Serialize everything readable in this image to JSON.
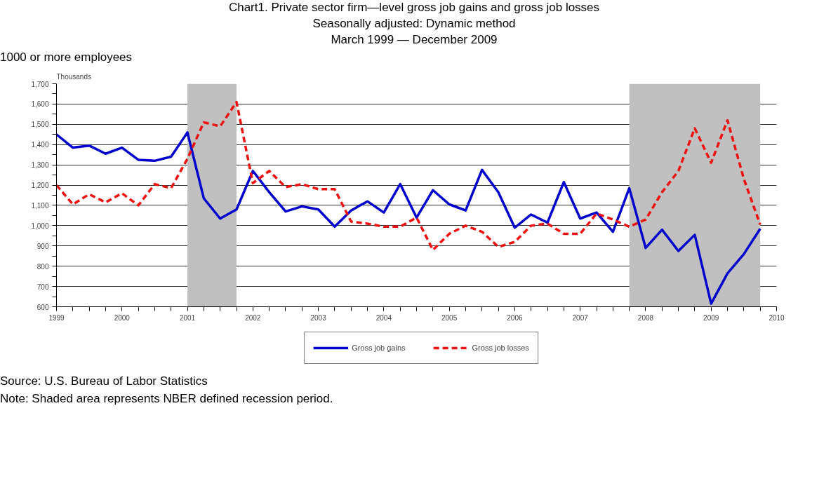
{
  "chart_data": {
    "type": "line",
    "title": "Chart1. Private sector firm—level gross job gains and gross job losses",
    "subtitle": "Seasonally adjusted: Dynamic method\nMarch 1999 — December 2009",
    "ylabel": "Thousands",
    "annotations": [
      "1000 or more employees",
      "Source: U.S. Bureau of Labor Statistics",
      "Note: Shaded area represents NBER defined recession period."
    ],
    "x": [
      1999,
      1999.25,
      1999.5,
      1999.75,
      2000,
      2000.25,
      2000.5,
      2000.75,
      2001,
      2001.25,
      2001.5,
      2001.75,
      2002,
      2002.25,
      2002.5,
      2002.75,
      2003,
      2003.25,
      2003.5,
      2003.75,
      2004,
      2004.25,
      2004.5,
      2004.75,
      2005,
      2005.25,
      2005.5,
      2005.75,
      2006,
      2006.25,
      2006.5,
      2006.75,
      2007,
      2007.25,
      2007.5,
      2007.75,
      2008,
      2008.25,
      2008.5,
      2008.75,
      2009,
      2009.25,
      2009.5,
      2009.75
    ],
    "series": [
      {
        "name": "Gross job gains",
        "color": "#0000cc",
        "line_style": "solid",
        "values": [
          1450,
          1385,
          1395,
          1355,
          1385,
          1325,
          1320,
          1340,
          1460,
          1135,
          1035,
          1080,
          1270,
          1165,
          1070,
          1095,
          1080,
          995,
          1075,
          1120,
          1065,
          1205,
          1040,
          1175,
          1105,
          1075,
          1275,
          1165,
          990,
          1055,
          1015,
          1215,
          1035,
          1065,
          970,
          1185,
          890,
          980,
          875,
          955,
          615,
          765,
          860,
          985
        ]
      },
      {
        "name": "Gross job losses",
        "color": "#ee1111",
        "line_style": "dashed",
        "values": [
          1200,
          1105,
          1155,
          1115,
          1160,
          1100,
          1205,
          1185,
          1330,
          1510,
          1490,
          1610,
          1210,
          1270,
          1190,
          1205,
          1180,
          1180,
          1020,
          1010,
          995,
          995,
          1040,
          880,
          960,
          1000,
          970,
          895,
          920,
          1000,
          1010,
          960,
          960,
          1060,
          1030,
          995,
          1030,
          1165,
          1270,
          1480,
          1310,
          1520,
          1230,
          1005
        ]
      }
    ],
    "bands": [
      {
        "axis": "x",
        "from": 2001,
        "to": 2001.75,
        "color": "#c0c0c0"
      },
      {
        "axis": "x",
        "from": 2007.75,
        "to": 2009.75,
        "color": "#c0c0c0"
      }
    ],
    "xlim": [
      1999,
      2010
    ],
    "xticks": [
      1999,
      {
        "value": 1999.25,
        "label": null
      },
      {
        "value": 1999.5,
        "label": null
      },
      {
        "value": 1999.75,
        "label": null
      },
      2000,
      {
        "value": 2000.25,
        "label": null
      },
      {
        "value": 2000.5,
        "label": null
      },
      {
        "value": 2000.75,
        "label": null
      },
      2001,
      {
        "value": 2001.25,
        "label": null
      },
      {
        "value": 2001.5,
        "label": null
      },
      {
        "value": 2001.75,
        "label": null
      },
      2002,
      {
        "value": 2002.25,
        "label": null
      },
      {
        "value": 2002.5,
        "label": null
      },
      {
        "value": 2002.75,
        "label": null
      },
      2003,
      {
        "value": 2003.25,
        "label": null
      },
      {
        "value": 2003.5,
        "label": null
      },
      {
        "value": 2003.75,
        "label": null
      },
      2004,
      {
        "value": 2004.25,
        "label": null
      },
      {
        "value": 2004.5,
        "label": null
      },
      {
        "value": 2004.75,
        "label": null
      },
      2005,
      {
        "value": 2005.25,
        "label": null
      },
      {
        "value": 2005.5,
        "label": null
      },
      {
        "value": 2005.75,
        "label": null
      },
      2006,
      {
        "value": 2006.25,
        "label": null
      },
      {
        "value": 2006.5,
        "label": null
      },
      {
        "value": 2006.75,
        "label": null
      },
      2007,
      {
        "value": 2007.25,
        "label": null
      },
      {
        "value": 2007.5,
        "label": null
      },
      {
        "value": 2007.75,
        "label": null
      },
      2008,
      {
        "value": 2008.25,
        "label": null
      },
      {
        "value": 2008.5,
        "label": null
      },
      {
        "value": 2008.75,
        "label": null
      },
      2009,
      {
        "value": 2009.25,
        "label": null
      },
      {
        "value": 2009.5,
        "label": null
      },
      {
        "value": 2009.75,
        "label": null
      },
      2010
    ],
    "ylim": [
      600,
      1700
    ],
    "yticks": [
      {
        "value": 600,
        "label": "600"
      },
      {
        "value": 650,
        "label": null
      },
      {
        "value": 700,
        "label": "700"
      },
      {
        "value": 750,
        "label": null
      },
      {
        "value": 800,
        "label": "800"
      },
      {
        "value": 850,
        "label": null
      },
      {
        "value": 900,
        "label": "900"
      },
      {
        "value": 950,
        "label": null
      },
      {
        "value": 1000,
        "label": "1,000"
      },
      {
        "value": 1050,
        "label": null
      },
      {
        "value": 1100,
        "label": "1,100"
      },
      {
        "value": 1150,
        "label": null
      },
      {
        "value": 1200,
        "label": "1,200"
      },
      {
        "value": 1250,
        "label": null
      },
      {
        "value": 1300,
        "label": "1,300"
      },
      {
        "value": 1350,
        "label": null
      },
      {
        "value": 1400,
        "label": "1,400"
      },
      {
        "value": 1450,
        "label": null
      },
      {
        "value": 1500,
        "label": "1,500"
      },
      {
        "value": 1550,
        "label": null
      },
      {
        "value": 1600,
        "label": "1,600"
      },
      {
        "value": 1650,
        "label": null
      },
      {
        "value": 1700,
        "label": "1,700"
      }
    ],
    "grid": "y",
    "legend": "bottom",
    "marker": "none"
  }
}
